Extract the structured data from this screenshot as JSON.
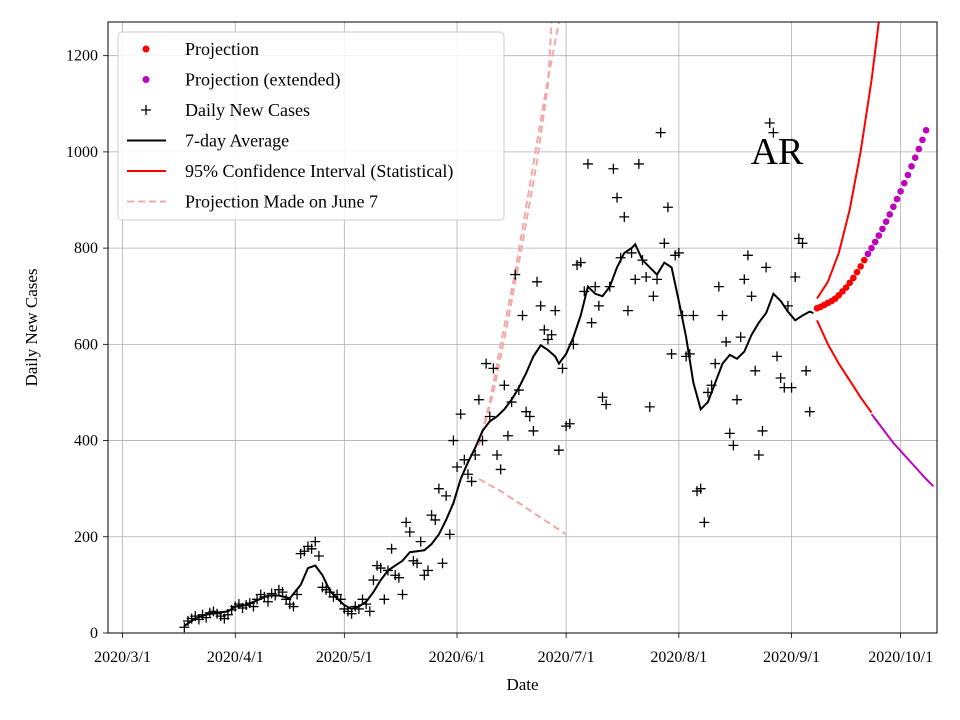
{
  "chart_data": {
    "type": "line",
    "state_label": "AR",
    "xlabel": "Date",
    "ylabel": "Daily New Cases",
    "xlim": [
      -4,
      224
    ],
    "ylim": [
      0,
      1270
    ],
    "x_ticks": [
      {
        "day": 0,
        "label": "2020/3/1"
      },
      {
        "day": 31,
        "label": "2020/4/1"
      },
      {
        "day": 61,
        "label": "2020/5/1"
      },
      {
        "day": 92,
        "label": "2020/6/1"
      },
      {
        "day": 122,
        "label": "2020/7/1"
      },
      {
        "day": 153,
        "label": "2020/8/1"
      },
      {
        "day": 184,
        "label": "2020/9/1"
      },
      {
        "day": 214,
        "label": "2020/10/1"
      }
    ],
    "y_ticks": [
      0,
      200,
      400,
      600,
      800,
      1000,
      1200
    ],
    "legend": [
      {
        "label": "Projection",
        "kind": "dot",
        "color": "#ff0000"
      },
      {
        "label": "Projection (extended)",
        "kind": "dot",
        "color": "#bf00bf"
      },
      {
        "label": "Daily New Cases",
        "kind": "plus",
        "color": "#000000"
      },
      {
        "label": "7-day Average",
        "kind": "line",
        "color": "#000000"
      },
      {
        "label": "95% Confidence Interval (Statistical)",
        "kind": "line",
        "color": "#ff0000"
      },
      {
        "label": "Projection Made on June 7",
        "kind": "dash",
        "color": "#f4a7a7"
      }
    ],
    "daily_new_cases": [
      [
        17,
        12
      ],
      [
        18,
        25
      ],
      [
        19,
        30
      ],
      [
        20,
        35
      ],
      [
        21,
        28
      ],
      [
        22,
        38
      ],
      [
        23,
        32
      ],
      [
        24,
        42
      ],
      [
        25,
        45
      ],
      [
        26,
        40
      ],
      [
        27,
        35
      ],
      [
        28,
        30
      ],
      [
        29,
        38
      ],
      [
        30,
        48
      ],
      [
        31,
        55
      ],
      [
        32,
        60
      ],
      [
        33,
        52
      ],
      [
        34,
        58
      ],
      [
        35,
        62
      ],
      [
        36,
        55
      ],
      [
        37,
        70
      ],
      [
        38,
        80
      ],
      [
        39,
        75
      ],
      [
        40,
        65
      ],
      [
        41,
        82
      ],
      [
        42,
        78
      ],
      [
        43,
        90
      ],
      [
        44,
        85
      ],
      [
        45,
        70
      ],
      [
        46,
        60
      ],
      [
        47,
        55
      ],
      [
        48,
        80
      ],
      [
        49,
        165
      ],
      [
        50,
        170
      ],
      [
        51,
        180
      ],
      [
        52,
        175
      ],
      [
        53,
        190
      ],
      [
        54,
        160
      ],
      [
        55,
        95
      ],
      [
        56,
        90
      ],
      [
        57,
        85
      ],
      [
        58,
        75
      ],
      [
        59,
        80
      ],
      [
        60,
        70
      ],
      [
        61,
        50
      ],
      [
        62,
        45
      ],
      [
        63,
        40
      ],
      [
        64,
        55
      ],
      [
        65,
        50
      ],
      [
        66,
        70
      ],
      [
        67,
        60
      ],
      [
        68,
        45
      ],
      [
        69,
        110
      ],
      [
        70,
        140
      ],
      [
        71,
        135
      ],
      [
        72,
        70
      ],
      [
        73,
        130
      ],
      [
        74,
        175
      ],
      [
        75,
        120
      ],
      [
        76,
        115
      ],
      [
        77,
        80
      ],
      [
        78,
        230
      ],
      [
        79,
        210
      ],
      [
        80,
        150
      ],
      [
        81,
        145
      ],
      [
        82,
        190
      ],
      [
        83,
        120
      ],
      [
        84,
        130
      ],
      [
        85,
        245
      ],
      [
        86,
        235
      ],
      [
        87,
        300
      ],
      [
        88,
        145
      ],
      [
        89,
        285
      ],
      [
        90,
        205
      ],
      [
        91,
        400
      ],
      [
        92,
        345
      ],
      [
        93,
        455
      ],
      [
        94,
        360
      ],
      [
        95,
        330
      ],
      [
        96,
        315
      ],
      [
        97,
        370
      ],
      [
        98,
        485
      ],
      [
        99,
        400
      ],
      [
        100,
        560
      ],
      [
        101,
        450
      ],
      [
        102,
        550
      ],
      [
        103,
        370
      ],
      [
        104,
        340
      ],
      [
        105,
        515
      ],
      [
        106,
        410
      ],
      [
        107,
        480
      ],
      [
        108,
        745
      ],
      [
        109,
        505
      ],
      [
        110,
        660
      ],
      [
        111,
        460
      ],
      [
        112,
        450
      ],
      [
        113,
        420
      ],
      [
        114,
        730
      ],
      [
        115,
        680
      ],
      [
        116,
        630
      ],
      [
        117,
        610
      ],
      [
        118,
        620
      ],
      [
        119,
        670
      ],
      [
        120,
        380
      ],
      [
        121,
        550
      ],
      [
        122,
        430
      ],
      [
        123,
        435
      ],
      [
        124,
        600
      ],
      [
        125,
        765
      ],
      [
        126,
        770
      ],
      [
        127,
        710
      ],
      [
        128,
        975
      ],
      [
        129,
        645
      ],
      [
        130,
        720
      ],
      [
        131,
        680
      ],
      [
        132,
        490
      ],
      [
        133,
        475
      ],
      [
        134,
        720
      ],
      [
        135,
        965
      ],
      [
        136,
        905
      ],
      [
        137,
        780
      ],
      [
        138,
        865
      ],
      [
        139,
        670
      ],
      [
        140,
        790
      ],
      [
        141,
        735
      ],
      [
        142,
        975
      ],
      [
        143,
        775
      ],
      [
        144,
        740
      ],
      [
        145,
        470
      ],
      [
        146,
        700
      ],
      [
        147,
        735
      ],
      [
        148,
        1040
      ],
      [
        149,
        810
      ],
      [
        150,
        885
      ],
      [
        151,
        580
      ],
      [
        152,
        785
      ],
      [
        153,
        790
      ],
      [
        154,
        660
      ],
      [
        155,
        575
      ],
      [
        156,
        580
      ],
      [
        157,
        660
      ],
      [
        158,
        295
      ],
      [
        159,
        300
      ],
      [
        160,
        230
      ],
      [
        161,
        500
      ],
      [
        162,
        515
      ],
      [
        163,
        560
      ],
      [
        164,
        720
      ],
      [
        165,
        660
      ],
      [
        166,
        605
      ],
      [
        167,
        415
      ],
      [
        168,
        390
      ],
      [
        169,
        485
      ],
      [
        170,
        615
      ],
      [
        171,
        735
      ],
      [
        172,
        785
      ],
      [
        173,
        700
      ],
      [
        174,
        545
      ],
      [
        175,
        370
      ],
      [
        176,
        420
      ],
      [
        177,
        760
      ],
      [
        178,
        1060
      ],
      [
        179,
        1040
      ],
      [
        180,
        575
      ],
      [
        181,
        530
      ],
      [
        182,
        510
      ],
      [
        183,
        680
      ],
      [
        184,
        510
      ],
      [
        185,
        740
      ],
      [
        186,
        820
      ],
      [
        187,
        810
      ],
      [
        188,
        545
      ],
      [
        189,
        460
      ]
    ],
    "seven_day_average": [
      [
        17,
        15
      ],
      [
        20,
        30
      ],
      [
        23,
        38
      ],
      [
        26,
        42
      ],
      [
        29,
        45
      ],
      [
        31,
        55
      ],
      [
        34,
        58
      ],
      [
        37,
        68
      ],
      [
        40,
        78
      ],
      [
        43,
        78
      ],
      [
        46,
        72
      ],
      [
        49,
        100
      ],
      [
        51,
        135
      ],
      [
        53,
        140
      ],
      [
        55,
        120
      ],
      [
        57,
        88
      ],
      [
        59,
        72
      ],
      [
        61,
        58
      ],
      [
        63,
        50
      ],
      [
        65,
        55
      ],
      [
        67,
        65
      ],
      [
        69,
        85
      ],
      [
        71,
        110
      ],
      [
        73,
        130
      ],
      [
        75,
        140
      ],
      [
        77,
        150
      ],
      [
        79,
        168
      ],
      [
        81,
        170
      ],
      [
        83,
        172
      ],
      [
        85,
        185
      ],
      [
        87,
        205
      ],
      [
        89,
        235
      ],
      [
        91,
        270
      ],
      [
        93,
        320
      ],
      [
        95,
        355
      ],
      [
        97,
        385
      ],
      [
        99,
        420
      ],
      [
        101,
        440
      ],
      [
        103,
        450
      ],
      [
        105,
        465
      ],
      [
        107,
        485
      ],
      [
        109,
        510
      ],
      [
        111,
        540
      ],
      [
        113,
        575
      ],
      [
        115,
        598
      ],
      [
        117,
        588
      ],
      [
        119,
        575
      ],
      [
        120,
        560
      ],
      [
        122,
        580
      ],
      [
        124,
        615
      ],
      [
        126,
        660
      ],
      [
        128,
        720
      ],
      [
        130,
        705
      ],
      [
        132,
        700
      ],
      [
        134,
        720
      ],
      [
        136,
        760
      ],
      [
        138,
        790
      ],
      [
        140,
        800
      ],
      [
        141,
        808
      ],
      [
        143,
        775
      ],
      [
        145,
        760
      ],
      [
        147,
        745
      ],
      [
        149,
        770
      ],
      [
        151,
        760
      ],
      [
        153,
        690
      ],
      [
        155,
        615
      ],
      [
        157,
        520
      ],
      [
        159,
        465
      ],
      [
        161,
        480
      ],
      [
        163,
        520
      ],
      [
        165,
        560
      ],
      [
        167,
        578
      ],
      [
        169,
        570
      ],
      [
        171,
        585
      ],
      [
        173,
        620
      ],
      [
        175,
        645
      ],
      [
        177,
        665
      ],
      [
        179,
        705
      ],
      [
        181,
        690
      ],
      [
        183,
        668
      ],
      [
        185,
        650
      ],
      [
        187,
        660
      ],
      [
        189,
        668
      ],
      [
        190,
        665
      ]
    ],
    "ci_upper": [
      [
        191,
        695
      ],
      [
        194,
        730
      ],
      [
        197,
        790
      ],
      [
        200,
        880
      ],
      [
        203,
        1000
      ],
      [
        206,
        1150
      ],
      [
        208,
        1270
      ]
    ],
    "ci_lower_red": [
      [
        191,
        650
      ],
      [
        194,
        600
      ],
      [
        197,
        560
      ],
      [
        200,
        525
      ],
      [
        203,
        490
      ],
      [
        206,
        458
      ]
    ],
    "ci_lower_extended": [
      [
        206,
        455
      ],
      [
        209,
        425
      ],
      [
        212,
        395
      ],
      [
        215,
        370
      ],
      [
        218,
        345
      ],
      [
        221,
        320
      ],
      [
        223,
        305
      ]
    ],
    "projection": [
      [
        191,
        675
      ],
      [
        192,
        678
      ],
      [
        193,
        682
      ],
      [
        194,
        686
      ],
      [
        195,
        690
      ],
      [
        196,
        695
      ],
      [
        197,
        702
      ],
      [
        198,
        710
      ],
      [
        199,
        718
      ],
      [
        200,
        728
      ],
      [
        201,
        738
      ],
      [
        202,
        750
      ],
      [
        203,
        762
      ],
      [
        204,
        775
      ]
    ],
    "projection_extended": [
      [
        205,
        788
      ],
      [
        206,
        800
      ],
      [
        207,
        813
      ],
      [
        208,
        826
      ],
      [
        209,
        840
      ],
      [
        210,
        855
      ],
      [
        211,
        870
      ],
      [
        212,
        886
      ],
      [
        213,
        902
      ],
      [
        214,
        918
      ],
      [
        215,
        935
      ],
      [
        216,
        952
      ],
      [
        217,
        970
      ],
      [
        218,
        988
      ],
      [
        219,
        1006
      ],
      [
        220,
        1025
      ],
      [
        221,
        1045
      ]
    ],
    "june7_upper": [
      [
        98,
        390
      ],
      [
        101,
        480
      ],
      [
        104,
        600
      ],
      [
        108,
        750
      ],
      [
        112,
        930
      ],
      [
        116,
        1110
      ],
      [
        120,
        1270
      ]
    ],
    "june7_upper2": [
      [
        98,
        390
      ],
      [
        102,
        500
      ],
      [
        106,
        650
      ],
      [
        110,
        810
      ],
      [
        114,
        980
      ],
      [
        117,
        1140
      ],
      [
        118,
        1270
      ]
    ],
    "june7_lower": [
      [
        98,
        320
      ],
      [
        104,
        295
      ],
      [
        110,
        265
      ],
      [
        116,
        235
      ],
      [
        122,
        205
      ]
    ]
  }
}
